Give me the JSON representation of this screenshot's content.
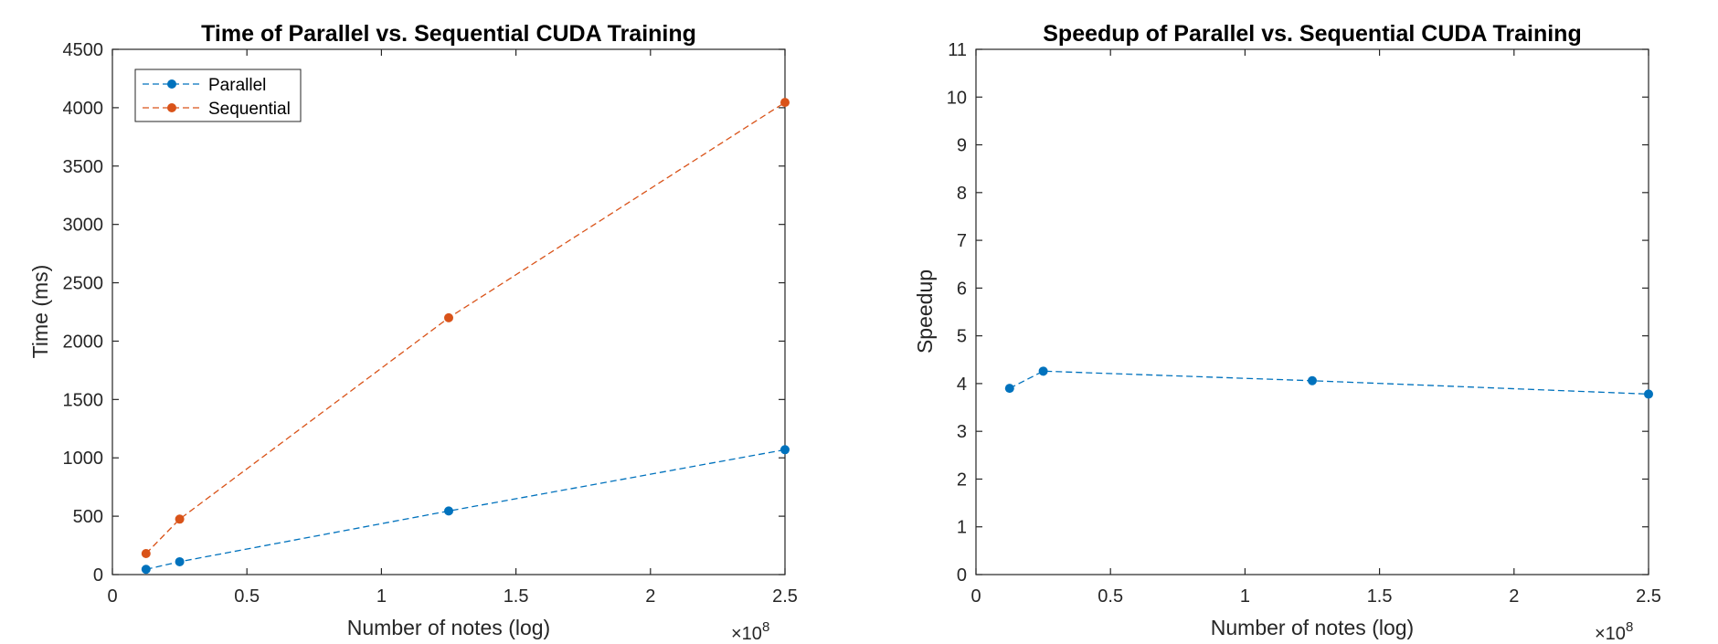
{
  "chart_data": [
    {
      "type": "line",
      "title": "Time of Parallel vs. Sequential CUDA Training",
      "xlabel": "Number of notes (log)",
      "ylabel": "Time (ms)",
      "xlim": [
        0,
        250000000
      ],
      "ylim": [
        0,
        4500
      ],
      "x_tick_values": [
        0,
        0.5,
        1,
        1.5,
        2,
        2.5
      ],
      "x_tick_labels": [
        "0",
        "0.5",
        "1",
        "1.5",
        "2",
        "2.5"
      ],
      "x_exponent": "×10",
      "x_exponent_power": "8",
      "y_tick_labels": [
        "0",
        "500",
        "1000",
        "1500",
        "2000",
        "2500",
        "3000",
        "3500",
        "4000",
        "4500"
      ],
      "legend": {
        "placement": "top-left"
      },
      "x": [
        12500000,
        25000000,
        125000000,
        250000000
      ],
      "series": [
        {
          "name": "Parallel",
          "color": "#0072BD",
          "values": [
            45,
            110,
            545,
            1070
          ]
        },
        {
          "name": "Sequential",
          "color": "#D95319",
          "values": [
            180,
            475,
            2200,
            4045
          ]
        }
      ]
    },
    {
      "type": "line",
      "title": "Speedup of Parallel vs. Sequential CUDA Training",
      "xlabel": "Number of notes (log)",
      "ylabel": "Speedup",
      "xlim": [
        0,
        250000000
      ],
      "ylim": [
        0,
        11
      ],
      "x_tick_values": [
        0,
        0.5,
        1,
        1.5,
        2,
        2.5
      ],
      "x_tick_labels": [
        "0",
        "0.5",
        "1",
        "1.5",
        "2",
        "2.5"
      ],
      "x_exponent": "×10",
      "x_exponent_power": "8",
      "y_tick_labels": [
        "0",
        "1",
        "2",
        "3",
        "4",
        "5",
        "6",
        "7",
        "8",
        "9",
        "10",
        "11"
      ],
      "x": [
        12500000,
        25000000,
        125000000,
        250000000
      ],
      "series": [
        {
          "color": "#0072BD",
          "values": [
            3.9,
            4.26,
            4.06,
            3.78
          ]
        }
      ]
    }
  ]
}
